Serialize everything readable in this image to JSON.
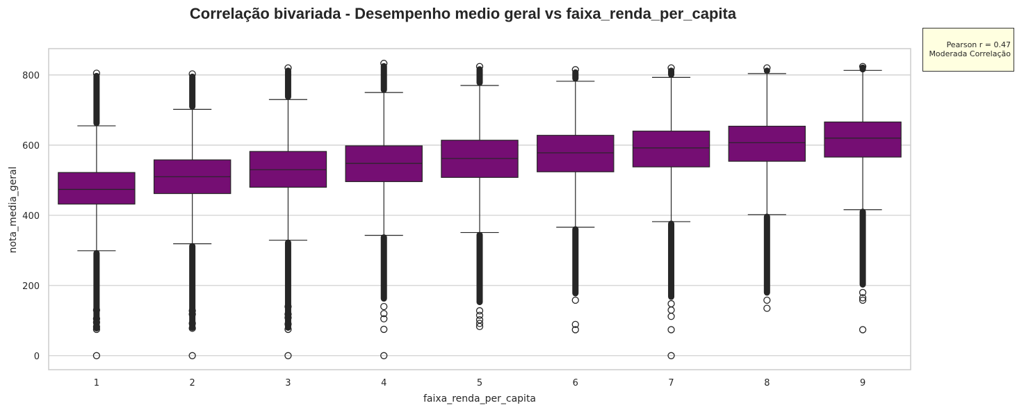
{
  "chart_data": {
    "type": "box",
    "title": "Correlação bivariada - Desempenho medio geral vs faixa_renda_per_capita",
    "xlabel": "faixa_renda_per_capita",
    "ylabel": "nota_media_geral",
    "ylim": [
      -40,
      875
    ],
    "yticks": [
      0,
      200,
      400,
      600,
      800
    ],
    "grid": true,
    "categories": [
      "1",
      "2",
      "3",
      "4",
      "5",
      "6",
      "7",
      "8",
      "9"
    ],
    "box_color": "#750e73",
    "boxes": [
      {
        "category": "1",
        "whisker_low": 299,
        "q1": 432,
        "median": 474,
        "q3": 522,
        "whisker_high": 655,
        "outliers_high": [
          655,
          805
        ],
        "outliers_low": [
          300,
          70
        ],
        "outlier_points": [
          0,
          75,
          82,
          95,
          105,
          130
        ]
      },
      {
        "category": "2",
        "whisker_low": 319,
        "q1": 462,
        "median": 510,
        "q3": 558,
        "whisker_high": 702,
        "outliers_high": [
          702,
          803
        ],
        "outliers_low": [
          320,
          72
        ],
        "outlier_points": [
          0,
          78,
          92,
          118,
          128
        ]
      },
      {
        "category": "3",
        "whisker_low": 329,
        "q1": 480,
        "median": 530,
        "q3": 582,
        "whisker_high": 730,
        "outliers_high": [
          730,
          820
        ],
        "outliers_low": [
          330,
          72
        ],
        "outlier_points": [
          0,
          75,
          90,
          108,
          118,
          140
        ]
      },
      {
        "category": "4",
        "whisker_low": 343,
        "q1": 496,
        "median": 548,
        "q3": 598,
        "whisker_high": 750,
        "outliers_high": [
          750,
          833
        ],
        "outliers_low": [
          345,
          155
        ],
        "outlier_points": [
          0,
          75,
          105,
          120,
          140
        ]
      },
      {
        "category": "5",
        "whisker_low": 351,
        "q1": 508,
        "median": 562,
        "q3": 614,
        "whisker_high": 770,
        "outliers_high": [
          770,
          824
        ],
        "outliers_low": [
          352,
          145
        ],
        "outlier_points": [
          83,
          92,
          102,
          115,
          128
        ]
      },
      {
        "category": "6",
        "whisker_low": 366,
        "q1": 524,
        "median": 578,
        "q3": 628,
        "whisker_high": 782,
        "outliers_high": [
          782,
          815
        ],
        "outliers_low": [
          368,
          170
        ],
        "outlier_points": [
          74,
          89,
          158
        ]
      },
      {
        "category": "7",
        "whisker_low": 382,
        "q1": 538,
        "median": 592,
        "q3": 640,
        "whisker_high": 793,
        "outliers_high": [
          793,
          820
        ],
        "outliers_low": [
          384,
          160
        ],
        "outlier_points": [
          0,
          74,
          112,
          130,
          148
        ]
      },
      {
        "category": "8",
        "whisker_low": 402,
        "q1": 554,
        "median": 607,
        "q3": 654,
        "whisker_high": 804,
        "outliers_high": [
          804,
          820
        ],
        "outliers_low": [
          404,
          172
        ],
        "outlier_points": [
          135,
          158
        ]
      },
      {
        "category": "9",
        "whisker_low": 416,
        "q1": 566,
        "median": 620,
        "q3": 666,
        "whisker_high": 813,
        "outliers_high": [
          813,
          824
        ],
        "outliers_low": [
          418,
          195
        ],
        "outlier_points": [
          74,
          158,
          165,
          180
        ]
      }
    ],
    "annotation": {
      "line1": "Pearson r = 0.47",
      "line2": "Moderada Correlação"
    }
  }
}
